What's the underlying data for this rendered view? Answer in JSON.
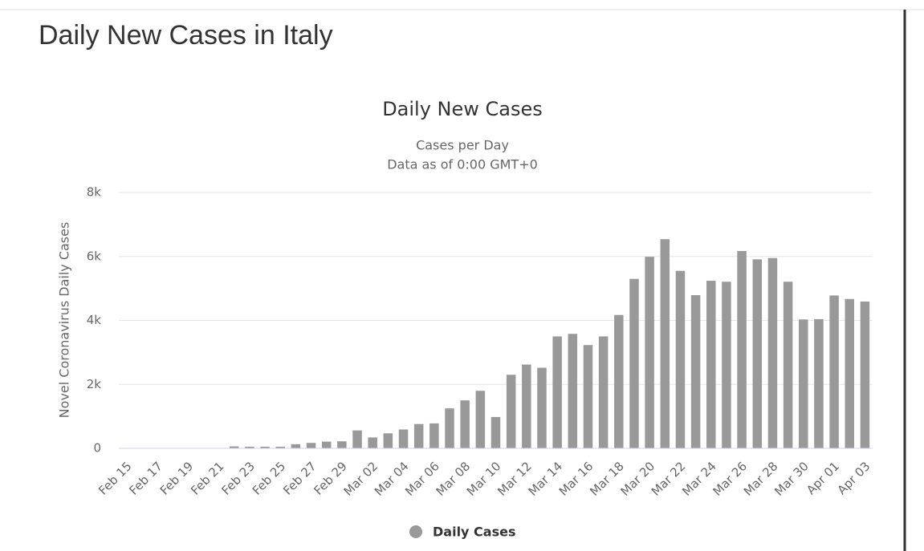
{
  "page_title": "Daily New Cases in Italy",
  "chart_data": {
    "type": "bar",
    "title": "Daily New Cases",
    "subtitle": [
      "Cases per Day",
      "Data as of 0:00 GMT+0"
    ],
    "y_label": "Novel Coronavirus Daily Cases",
    "categories": [
      "Feb 15",
      null,
      "Feb 17",
      null,
      "Feb 19",
      null,
      "Feb 21",
      null,
      "Feb 23",
      null,
      "Feb 25",
      null,
      "Feb 27",
      null,
      "Feb 29",
      null,
      "Mar 02",
      null,
      "Mar 04",
      null,
      "Mar 06",
      null,
      "Mar 08",
      null,
      "Mar 10",
      null,
      "Mar 12",
      null,
      "Mar 14",
      null,
      "Mar 16",
      null,
      "Mar 18",
      null,
      "Mar 20",
      null,
      "Mar 22",
      null,
      "Mar 24",
      null,
      "Mar 26",
      null,
      "Mar 28",
      null,
      "Mar 30",
      null,
      "Apr 01",
      null,
      "Apr 03"
    ],
    "series": [
      {
        "name": "Daily Cases",
        "color": "#999999",
        "values": [
          0,
          0,
          0,
          0,
          0,
          0,
          0,
          60,
          50,
          50,
          50,
          130,
          170,
          210,
          220,
          560,
          340,
          470,
          590,
          760,
          780,
          1250,
          1500,
          1800,
          980,
          2300,
          2620,
          2520,
          3500,
          3580,
          3230,
          3500,
          4170,
          5300,
          5990,
          6540,
          5550,
          4790,
          5240,
          5210,
          6170,
          5910,
          5950,
          5210,
          4030,
          4040,
          4780,
          4670,
          4590
        ]
      }
    ],
    "ylim": [
      0,
      8000
    ],
    "yticks": [
      0,
      {
        "value": 2000,
        "label": "2k"
      },
      {
        "value": 4000,
        "label": "4k"
      },
      {
        "value": 6000,
        "label": "6k"
      },
      {
        "value": 8000,
        "label": "8k"
      }
    ],
    "grid": true
  }
}
